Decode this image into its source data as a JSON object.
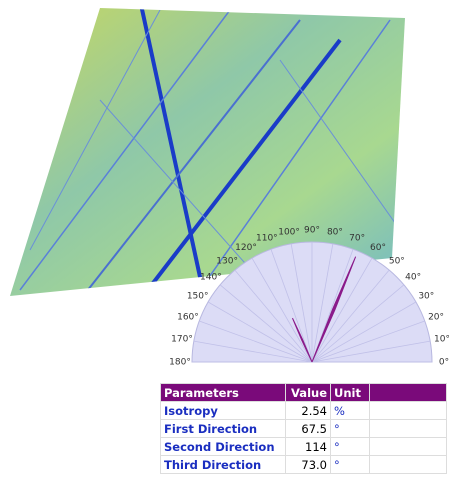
{
  "polar": {
    "ticks": [
      {
        "value": 0,
        "label": "0°"
      },
      {
        "value": 10,
        "label": "10°"
      },
      {
        "value": 20,
        "label": "20°"
      },
      {
        "value": 30,
        "label": "30°"
      },
      {
        "value": 40,
        "label": "40°"
      },
      {
        "value": 50,
        "label": "50°"
      },
      {
        "value": 60,
        "label": "60°"
      },
      {
        "value": 70,
        "label": "70°"
      },
      {
        "value": 80,
        "label": "80°"
      },
      {
        "value": 90,
        "label": "90°"
      },
      {
        "value": 100,
        "label": "100°"
      },
      {
        "value": 110,
        "label": "110°"
      },
      {
        "value": 120,
        "label": "120°"
      },
      {
        "value": 130,
        "label": "130°"
      },
      {
        "value": 140,
        "label": "140°"
      },
      {
        "value": 150,
        "label": "150°"
      },
      {
        "value": 160,
        "label": "160°"
      },
      {
        "value": 170,
        "label": "170°"
      },
      {
        "value": 180,
        "label": "180°"
      }
    ],
    "peaks": [
      {
        "angle": 67.5,
        "length": 0.95
      },
      {
        "angle": 114,
        "length": 0.4
      }
    ]
  },
  "table": {
    "header": [
      "Parameters",
      "Value",
      "Unit"
    ],
    "rows": [
      [
        "Isotropy",
        "2.54",
        "%"
      ],
      [
        "First Direction",
        "67.5",
        "°"
      ],
      [
        "Second Direction",
        "114",
        "°"
      ],
      [
        "Third Direction",
        "73.0",
        "°"
      ]
    ]
  }
}
